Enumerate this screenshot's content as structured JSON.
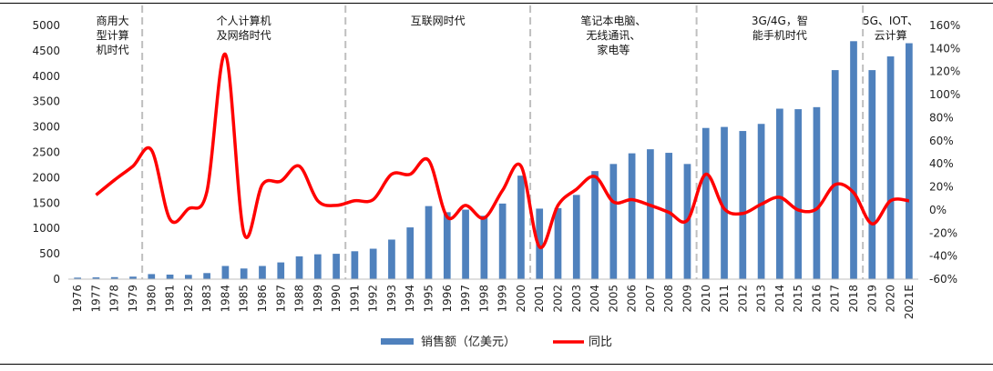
{
  "colors": {
    "bar": "#4f81bd",
    "line": "#ff0000",
    "divider": "#bfbfbf",
    "axis": "#bfbfbf"
  },
  "chart_data": {
    "type": "bar",
    "categories": [
      "1976",
      "1977",
      "1978",
      "1979",
      "1980",
      "1981",
      "1982",
      "1983",
      "1984",
      "1985",
      "1986",
      "1987",
      "1988",
      "1989",
      "1990",
      "1991",
      "1992",
      "1993",
      "1994",
      "1995",
      "1996",
      "1997",
      "1998",
      "1999",
      "2000",
      "2001",
      "2002",
      "2003",
      "2004",
      "2005",
      "2006",
      "2007",
      "2008",
      "2009",
      "2010",
      "2011",
      "2012",
      "2013",
      "2014",
      "2015",
      "2016",
      "2017",
      "2018",
      "2019",
      "2020",
      "2021E"
    ],
    "series": [
      {
        "name": "销售额（亿美元）",
        "type": "bar",
        "axis": "left",
        "values": [
          30,
          35,
          40,
          50,
          100,
          90,
          85,
          120,
          260,
          210,
          260,
          330,
          450,
          490,
          500,
          550,
          600,
          780,
          1020,
          1440,
          1320,
          1370,
          1250,
          1490,
          2040,
          1390,
          1400,
          1660,
          2130,
          2270,
          2480,
          2560,
          2490,
          2270,
          2980,
          3000,
          2920,
          3060,
          3360,
          3350,
          3390,
          4120,
          4690,
          4120,
          4390,
          4650
        ]
      },
      {
        "name": "同比",
        "type": "line",
        "axis": "right",
        "values": [
          null,
          13,
          26,
          38,
          52,
          -8,
          1,
          16,
          135,
          -20,
          22,
          25,
          38,
          8,
          4,
          8,
          9,
          31,
          31,
          43,
          -6,
          4,
          -7,
          17,
          38,
          -32,
          4,
          18,
          29,
          7,
          9,
          4,
          -2,
          -9,
          31,
          1,
          -3,
          5,
          11,
          0,
          1,
          22,
          15,
          -12,
          8,
          8
        ]
      }
    ],
    "y_left": {
      "min": 0,
      "max": 5000,
      "step": 500
    },
    "y_right": {
      "min": -60,
      "max": 160,
      "step": 20,
      "format": "percent"
    },
    "grid": false,
    "legend": "bottom",
    "eras": [
      {
        "label_lines": [
          "商用大",
          "型计算",
          "机时代"
        ],
        "start": 0,
        "end": 4
      },
      {
        "label_lines": [
          "个人计算机",
          "及网络时代"
        ],
        "start": 4,
        "end": 15
      },
      {
        "label_lines": [
          "互联网时代"
        ],
        "start": 15,
        "end": 25
      },
      {
        "label_lines": [
          "笔记本电脑、",
          "无线通讯、",
          "家电等"
        ],
        "start": 25,
        "end": 34
      },
      {
        "label_lines": [
          "3G/4G，智",
          "能手机时代"
        ],
        "start": 34,
        "end": 43
      },
      {
        "label_lines": [
          "5G、IOT、",
          "云计算"
        ],
        "start": 43,
        "end": 46
      }
    ]
  }
}
